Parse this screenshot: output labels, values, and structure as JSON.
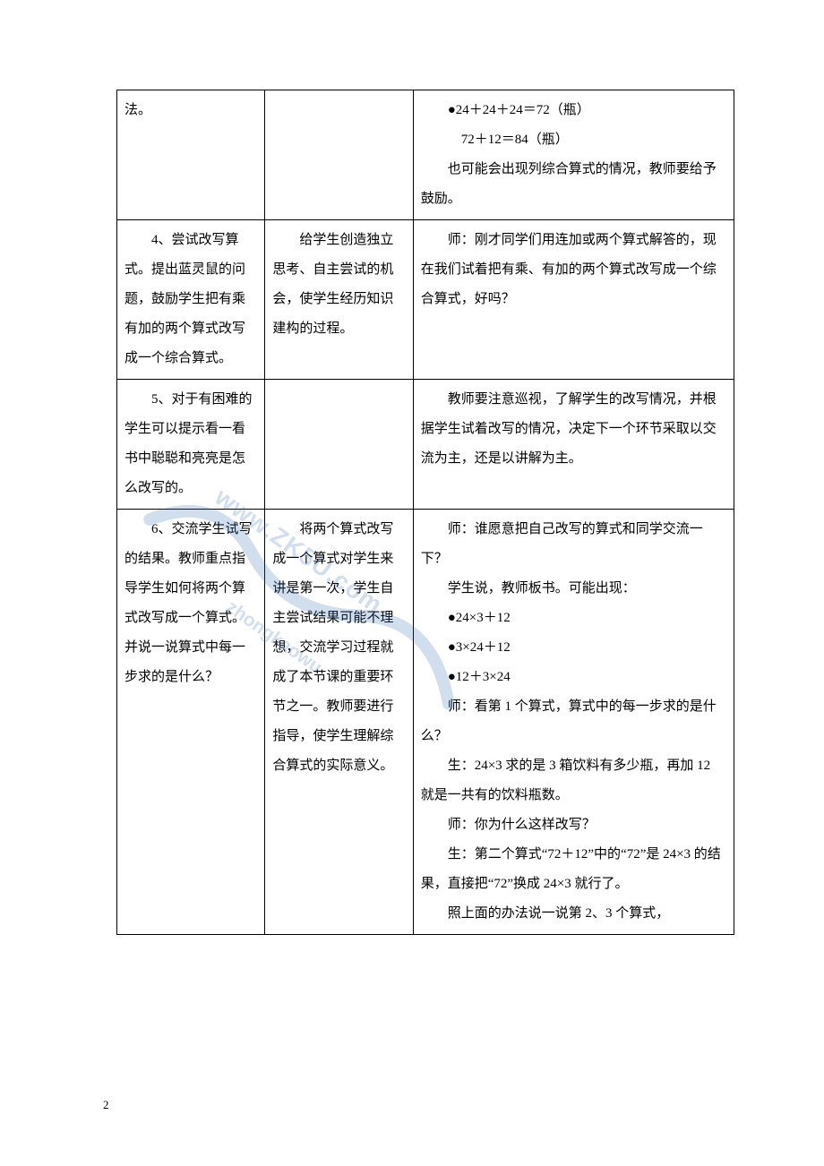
{
  "watermark": {
    "url_text": "www.ZK5U.com",
    "site_text": "zhongkaowu"
  },
  "page_number": "2",
  "rows": [
    {
      "c1": [
        {
          "text": "法。",
          "indent": false
        }
      ],
      "c2": [],
      "c3": [
        {
          "text": "●24＋24＋24＝72（瓶）",
          "indent": true
        },
        {
          "text": "72＋12＝84（瓶）",
          "indent3": true
        },
        {
          "text": "也可能会出现列综合算式的情况，教师要给予鼓励。",
          "indent": true
        }
      ]
    },
    {
      "c1": [
        {
          "text": "4、尝试改写算式。提出蓝灵鼠的问题，鼓励学生把有乘有加的两个算式改写成一个综合算式。",
          "indent": true
        }
      ],
      "c2": [
        {
          "text": "给学生创造独立思考、自主尝试的机会，使学生经历知识建构的过程。",
          "indent": true
        }
      ],
      "c3": [
        {
          "text": "师：刚才同学们用连加或两个算式解答的，现在我们试着把有乘、有加的两个算式改写成一个综合算式，好吗？",
          "indent": true
        }
      ]
    },
    {
      "c1": [
        {
          "text": "5、对于有困难的学生可以提示看一看书中聪聪和亮亮是怎么改写的。",
          "indent": true
        }
      ],
      "c2": [],
      "c3": [
        {
          "text": "教师要注意巡视，了解学生的改写情况，并根据学生试着改写的情况，决定下一个环节采取以交流为主，还是以讲解为主。",
          "indent": true
        }
      ]
    },
    {
      "c1": [
        {
          "text": "6、交流学生试写的结果。教师重点指导学生如何将两个算式改写成一个算式。并说一说算式中每一步求的是什么？",
          "indent": true
        }
      ],
      "c2": [
        {
          "text": "将两个算式改写成一个算式对学生来讲是第一次，学生自主尝试结果可能不理想，交流学习过程就成了本节课的重要环节之一。教师要进行指导，使学生理解综合算式的实际意义。",
          "indent": true
        }
      ],
      "c3": [
        {
          "text": "师：谁愿意把自己改写的算式和同学交流一下？",
          "indent": true
        },
        {
          "text": "学生说，教师板书。可能出现：",
          "indent": true
        },
        {
          "text": "●24×3＋12",
          "indent": true
        },
        {
          "text": "●3×24＋12",
          "indent": true
        },
        {
          "text": "●12＋3×24",
          "indent": true
        },
        {
          "text": "师：看第 1 个算式，算式中的每一步求的是什么？",
          "indent": true
        },
        {
          "text": "生：24×3 求的是 3 箱饮料有多少瓶，再加 12 就是一共有的饮料瓶数。",
          "indent": true
        },
        {
          "text": "师：你为什么这样改写？",
          "indent": true
        },
        {
          "text": "生：第二个算式“72＋12”中的“72”是 24×3 的结果，直接把“72”换成 24×3 就行了。",
          "indent": true
        },
        {
          "text": "照上面的办法说一说第 2、3 个算式，",
          "indent": true
        }
      ]
    }
  ]
}
